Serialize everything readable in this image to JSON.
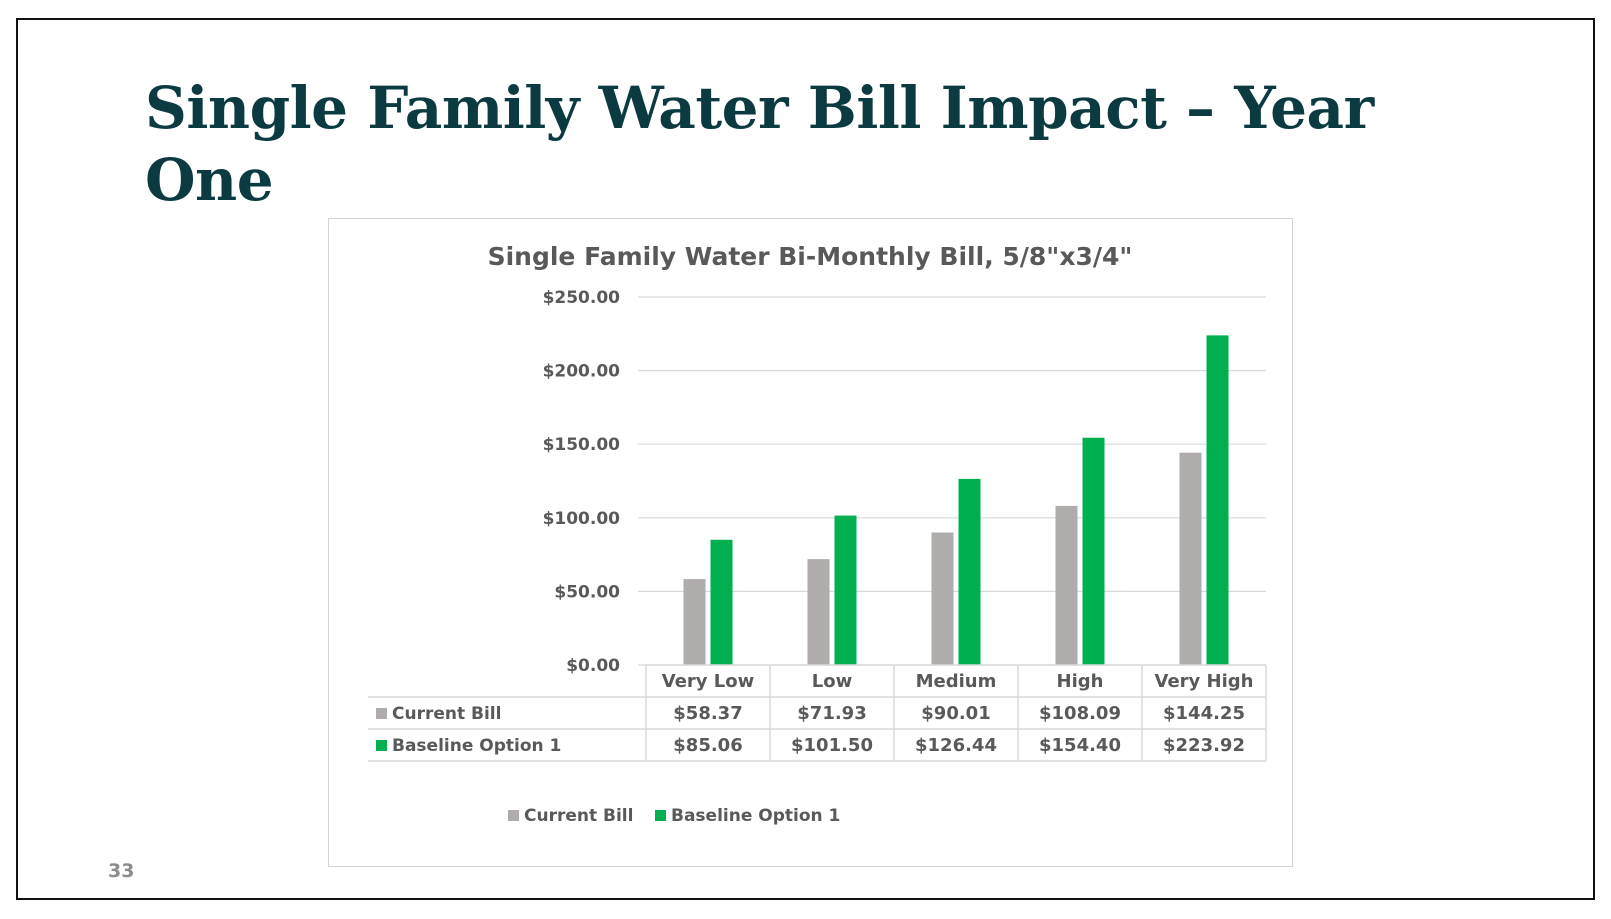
{
  "slide": {
    "title": "Single Family Water Bill Impact – Year One",
    "page_number": "33"
  },
  "colors": {
    "title": "#0b3a40",
    "current_bill": "#b0acab",
    "baseline_option_1": "#00b050",
    "gridline": "#d9d9d9",
    "text": "#595959"
  },
  "chart_data": {
    "type": "bar",
    "title": "Single Family Water Bi-Monthly Bill, 5/8\"x3/4\"",
    "categories": [
      "Very Low",
      "Low",
      "Medium",
      "High",
      "Very High"
    ],
    "series": [
      {
        "name": "Current Bill",
        "color": "#b0acab",
        "values": [
          58.37,
          71.93,
          90.01,
          108.09,
          144.25
        ],
        "labels": [
          "$58.37",
          "$71.93",
          "$90.01",
          "$108.09",
          "$144.25"
        ]
      },
      {
        "name": "Baseline Option 1",
        "color": "#00b050",
        "values": [
          85.06,
          101.5,
          126.44,
          154.4,
          223.92
        ],
        "labels": [
          "$85.06",
          "$101.50",
          "$126.44",
          "$154.40",
          "$223.92"
        ]
      }
    ],
    "ylim": [
      0,
      250
    ],
    "yticks": [
      0,
      50,
      100,
      150,
      200,
      250
    ],
    "ytick_labels": [
      "$0.00",
      "$50.00",
      "$100.00",
      "$150.00",
      "$200.00",
      "$250.00"
    ],
    "xlabel": "",
    "ylabel": "",
    "grid": true,
    "legend": "bottom",
    "data_table": true
  }
}
